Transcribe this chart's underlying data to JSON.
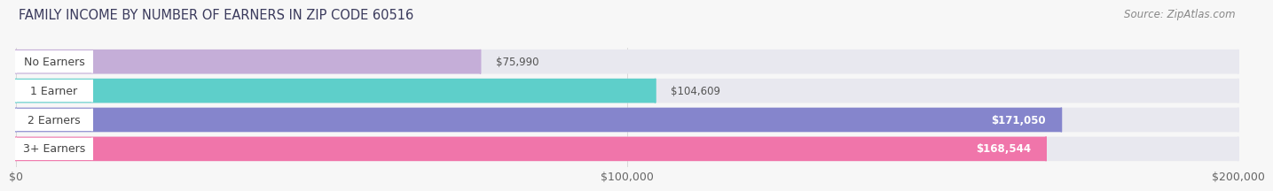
{
  "title": "FAMILY INCOME BY NUMBER OF EARNERS IN ZIP CODE 60516",
  "source": "Source: ZipAtlas.com",
  "categories": [
    "No Earners",
    "1 Earner",
    "2 Earners",
    "3+ Earners"
  ],
  "values": [
    75990,
    104609,
    171050,
    168544
  ],
  "bar_colors": [
    "#c5aed8",
    "#5ecfca",
    "#8585cc",
    "#f075aa"
  ],
  "bar_bg_color": "#e8e8ef",
  "value_labels": [
    "$75,990",
    "$104,609",
    "$171,050",
    "$168,544"
  ],
  "value_inside": [
    false,
    false,
    true,
    true
  ],
  "x_ticks": [
    0,
    100000,
    200000
  ],
  "x_tick_labels": [
    "$0",
    "$100,000",
    "$200,000"
  ],
  "xlim": [
    0,
    200000
  ],
  "title_fontsize": 10.5,
  "source_fontsize": 8.5,
  "label_fontsize": 9,
  "value_fontsize": 8.5,
  "tick_fontsize": 9,
  "background_color": "#f7f7f7",
  "title_color": "#3a3a5c",
  "source_color": "#888888"
}
